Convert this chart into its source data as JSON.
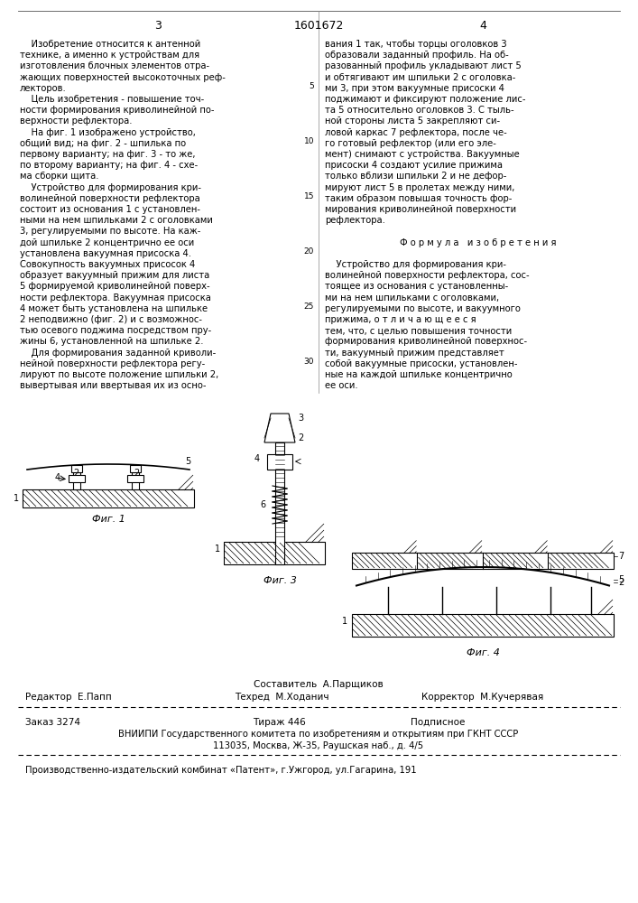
{
  "page_number_left": "3",
  "patent_number": "1601672",
  "page_number_right": "4",
  "bg_color": "#ffffff",
  "text_color": "#000000",
  "left_column_text": [
    "    Изобретение относится к антенной",
    "технике, а именно к устройствам для",
    "изготовления блочных элементов отра-",
    "жающих поверхностей высокоточных реф-",
    "лекторов.",
    "    Цель изобретения - повышение точ-",
    "ности формирования криволинейной по-",
    "верхности рефлектора.",
    "    На фиг. 1 изображено устройство,",
    "общий вид; на фиг. 2 - шпилька по",
    "первому варианту; на фиг. 3 - то же,",
    "по второму варианту; на фиг. 4 - схе-",
    "ма сборки щита.",
    "    Устройство для формирования кри-",
    "волинейной поверхности рефлектора",
    "состоит из основания 1 с установлен-",
    "ными на нем шпильками 2 с оголовками",
    "3, регулируемыми по высоте. На каж-",
    "дой шпильке 2 концентрично ее оси",
    "установлена вакуумная присоска 4.",
    "Совокупность вакуумных присосок 4",
    "образует вакуумный прижим для листа",
    "5 формируемой криволинейной поверх-",
    "ности рефлектора. Вакуумная присоска",
    "4 может быть установлена на шпильке",
    "2 неподвижно (фиг. 2) и с возможнос-",
    "тью осевого поджима посредством пру-",
    "жины 6, установленной на шпильке 2.",
    "    Для формирования заданной криволи-",
    "нейной поверхности рефлектора регу-",
    "лируют по высоте положение шпильки 2,",
    "вывертывая или ввертывая их из осно-"
  ],
  "right_column_text": [
    "вания 1 так, чтобы торцы оголовков 3",
    "образовали заданный профиль. На об-",
    "разованный профиль укладывают лист 5",
    "и обтягивают им шпильки 2 с оголовка-",
    "ми 3, при этом вакуумные присоски 4",
    "поджимают и фиксируют положение лис-",
    "та 5 относительно оголовков 3. С тыль-",
    "ной стороны листа 5 закрепляют си-",
    "ловой каркас 7 рефлектора, после че-",
    "го готовый рефлектор (или его эле-",
    "мент) снимают с устройства. Вакуумные",
    "присоски 4 создают усилие прижима",
    "только вблизи шпильки 2 и не дефор-",
    "мируют лист 5 в пролетах между ними,",
    "таким образом повышая точность фор-",
    "мирования криволинейной поверхности",
    "рефлектора.",
    "",
    "Ф о р м у л а   и з о б р е т е н и я",
    "",
    "    Устройство для формирования кри-",
    "волинейной поверхности рефлектора, сос-",
    "тоящее из основания с установленны-",
    "ми на нем шпильками с оголовками,",
    "регулируемыми по высоте, и вакуумного",
    "прижима, о т л и ч а ю щ е е с я",
    "тем, что, с целью повышения точности",
    "формирования криволинейной поверхнос-",
    "ти, вакуумный прижим представляет",
    "собой вакуумные присоски, установлен-",
    "ные на каждой шпильке концентрично",
    "ее оси."
  ],
  "footer_composer": "Составитель  А.Парщиков",
  "footer_editor": "Редактор  Е.Папп",
  "footer_techred": "Техред  М.Ходанич",
  "footer_corrector": "Корректор  М.Кучерявая",
  "footer_order": "Заказ 3274",
  "footer_tirazh": "Тираж 446",
  "footer_podpisnoe": "Подписное",
  "footer_vniip": "ВНИИПИ Государственного комитета по изобретениям и открытиям при ГКНТ СССР",
  "footer_address": "113035, Москва, Ж-35, Раушская наб., д. 4/5",
  "footer_factory": "Производственно-издательский комбинат «Патент», г.Ужгород, ул.Гагарина, 191",
  "fig1_label": "Фиг. 1",
  "fig3_label": "Фиг. 3",
  "fig4_label": "Фиг. 4",
  "line_numbers": [
    "5",
    "10",
    "15",
    "20",
    "25",
    "30"
  ]
}
